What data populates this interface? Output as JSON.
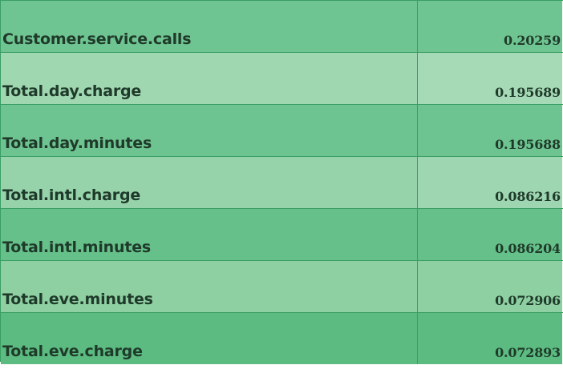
{
  "table": {
    "rows": [
      {
        "name": "Customer.service.calls",
        "value": "0.20259"
      },
      {
        "name": "Total.day.charge",
        "value": "0.195689"
      },
      {
        "name": "Total.day.minutes",
        "value": "0.195688"
      },
      {
        "name": "Total.intl.charge",
        "value": "0.086216"
      },
      {
        "name": "Total.intl.minutes",
        "value": "0.086204"
      },
      {
        "name": "Total.eve.minutes",
        "value": "0.072906"
      },
      {
        "name": "Total.eve.charge",
        "value": "0.072893"
      }
    ]
  }
}
